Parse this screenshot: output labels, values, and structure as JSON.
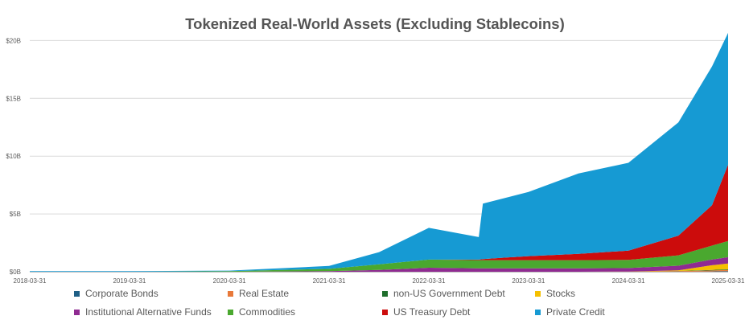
{
  "chart_data": {
    "type": "area",
    "stacked": true,
    "title": "Tokenized Real-World Assets (Excluding Stablecoins)",
    "xlabel": "",
    "ylabel": "",
    "x_ticks": [
      "2018-03-31",
      "2019-03-31",
      "2020-03-31",
      "2021-03-31",
      "2022-03-31",
      "2023-03-31",
      "2024-03-31",
      "2025-03-31"
    ],
    "y_ticks": [
      "$0B",
      "$5B",
      "$10B",
      "$15B",
      "$20B"
    ],
    "ylim": [
      0,
      21
    ],
    "grid": "horizontal",
    "legend_position": "bottom",
    "colors": {
      "corporate_bonds": "#1f5f86",
      "real_estate": "#e8793a",
      "non_us_gov_debt": "#1f6e2c",
      "stocks": "#f5c000",
      "institutional_alt_funds": "#8f2b91",
      "commodities": "#4aa82f",
      "us_treasury_debt": "#cc0c0c",
      "private_credit": "#169ad3"
    },
    "x": [
      "2018-03-31",
      "2019-03-31",
      "2020-03-31",
      "2021-03-31",
      "2021-09-30",
      "2022-03-31",
      "2022-09-30",
      "2022-10-15",
      "2023-03-31",
      "2023-09-30",
      "2024-03-31",
      "2024-09-30",
      "2025-01-31",
      "2025-03-31"
    ],
    "series": [
      {
        "name": "Corporate Bonds",
        "key": "corporate_bonds",
        "values": [
          0,
          0,
          0,
          0,
          0,
          0,
          0,
          0,
          0,
          0,
          0,
          0,
          0.03,
          0.05
        ]
      },
      {
        "name": "Real Estate",
        "key": "real_estate",
        "values": [
          0,
          0,
          0,
          0,
          0,
          0,
          0,
          0,
          0,
          0,
          0.02,
          0.05,
          0.08,
          0.1
        ]
      },
      {
        "name": "non-US Government Debt",
        "key": "non_us_gov_debt",
        "values": [
          0,
          0,
          0,
          0,
          0,
          0,
          0,
          0,
          0,
          0,
          0,
          0.02,
          0.05,
          0.06
        ]
      },
      {
        "name": "Stocks",
        "key": "stocks",
        "values": [
          0,
          0,
          0,
          0,
          0,
          0,
          0,
          0,
          0,
          0,
          0,
          0.05,
          0.4,
          0.5
        ]
      },
      {
        "name": "Institutional Alternative Funds",
        "key": "institutional_alt_funds",
        "values": [
          0,
          0,
          0,
          0.05,
          0.15,
          0.35,
          0.3,
          0.3,
          0.3,
          0.3,
          0.3,
          0.4,
          0.5,
          0.55
        ]
      },
      {
        "name": "Commodities",
        "key": "commodities",
        "values": [
          0,
          0,
          0.05,
          0.2,
          0.5,
          0.7,
          0.7,
          0.7,
          0.7,
          0.7,
          0.7,
          0.9,
          1.2,
          1.4
        ]
      },
      {
        "name": "US Treasury Debt",
        "key": "us_treasury_debt",
        "values": [
          0,
          0,
          0,
          0,
          0,
          0,
          0.05,
          0.1,
          0.35,
          0.55,
          0.8,
          1.7,
          3.5,
          6.6
        ]
      },
      {
        "name": "Private Credit",
        "key": "private_credit",
        "values": [
          0.05,
          0.05,
          0.05,
          0.25,
          1.05,
          2.75,
          1.95,
          4.8,
          5.55,
          6.95,
          7.6,
          9.8,
          12.0,
          11.4
        ]
      }
    ]
  }
}
